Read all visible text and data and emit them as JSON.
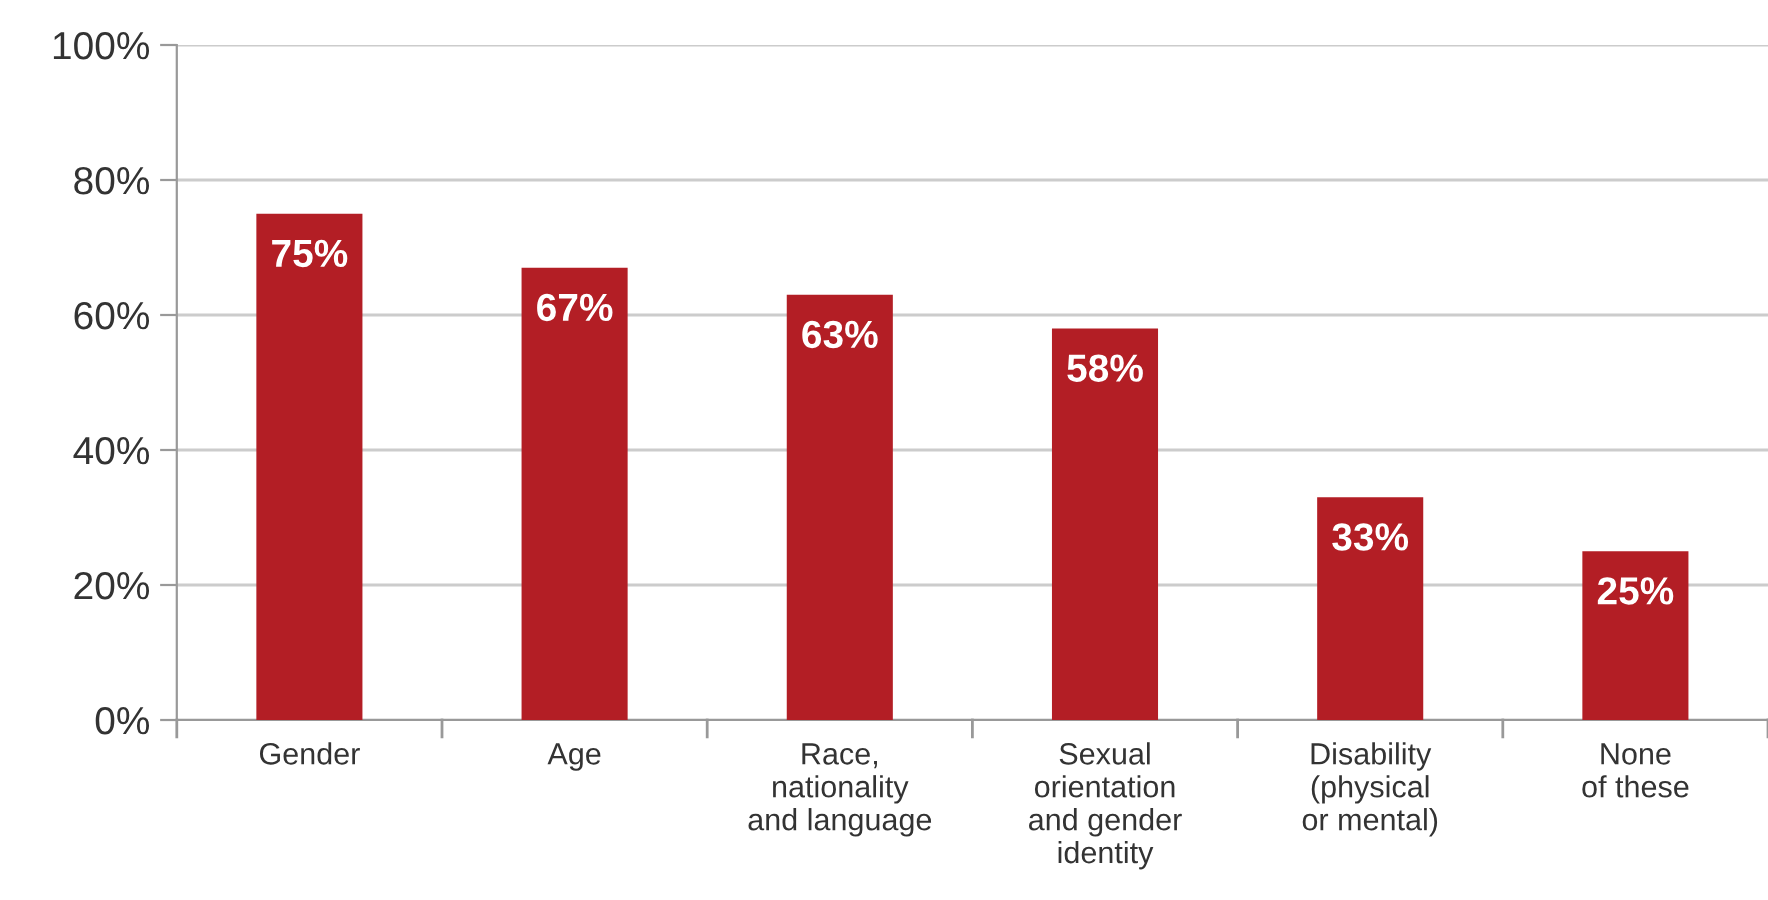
{
  "chart_data": {
    "type": "bar",
    "categories": [
      "Gender",
      "Age",
      "Race,\nnationality\nand language",
      "Sexual\norientation\nand gender\nidentity",
      "Disability\n(physical\nor mental)",
      "None\nof these"
    ],
    "values": [
      75,
      67,
      63,
      58,
      33,
      25
    ],
    "value_labels": [
      "75%",
      "67%",
      "63%",
      "58%",
      "33%",
      "25%"
    ],
    "color": "#b31e25",
    "ylim": [
      0,
      100
    ],
    "yticks": [
      {
        "value": 0,
        "label": "0%"
      },
      {
        "value": 20,
        "label": "20%"
      },
      {
        "value": 40,
        "label": "40%"
      },
      {
        "value": 60,
        "label": "60%"
      },
      {
        "value": 80,
        "label": "80%"
      },
      {
        "value": 100,
        "label": "100%"
      }
    ],
    "grid": "y"
  }
}
